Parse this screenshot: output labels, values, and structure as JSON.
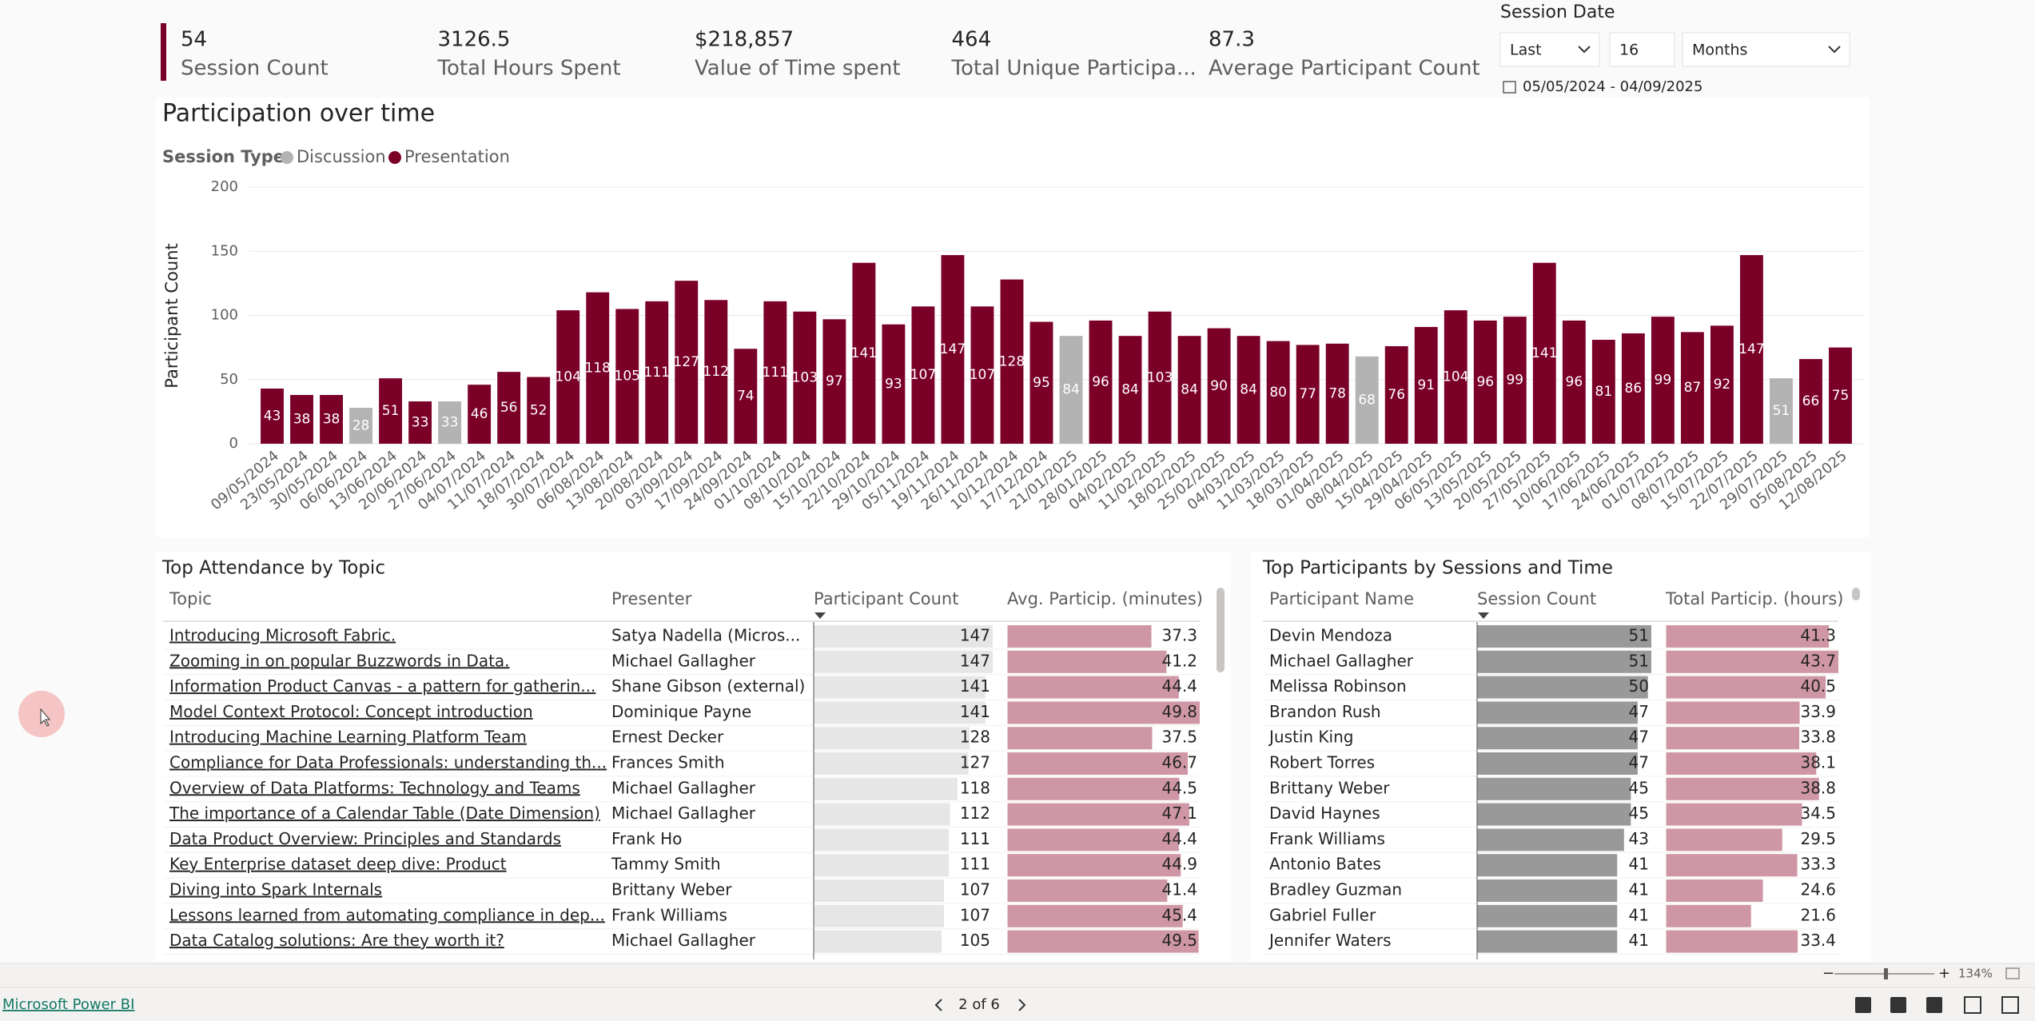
{
  "kpis": [
    {
      "value": "54",
      "label": "Session Count"
    },
    {
      "value": "3126.5",
      "label": "Total Hours Spent"
    },
    {
      "value": "$218,857",
      "label": "Value of Time spent"
    },
    {
      "value": "464",
      "label": "Total Unique Participa..."
    },
    {
      "value": "87.3",
      "label": "Average Participant Count"
    }
  ],
  "slicer": {
    "title": "Session Date",
    "mode": "Last",
    "count": "16",
    "unit": "Months",
    "range": "05/05/2024 - 04/09/2025"
  },
  "chart_data": {
    "type": "bar",
    "title": "Participation over time",
    "legend_title": "Session Type",
    "y_label": "Participant Count",
    "categories": [
      "09/05/2024",
      "23/05/2024",
      "30/05/2024",
      "06/06/2024",
      "13/06/2024",
      "20/06/2024",
      "27/06/2024",
      "04/07/2024",
      "11/07/2024",
      "18/07/2024",
      "30/07/2024",
      "06/08/2024",
      "13/08/2024",
      "20/08/2024",
      "03/09/2024",
      "17/09/2024",
      "24/09/2024",
      "01/10/2024",
      "08/10/2024",
      "15/10/2024",
      "22/10/2024",
      "29/10/2024",
      "05/11/2024",
      "19/11/2024",
      "26/11/2024",
      "10/12/2024",
      "17/12/2024",
      "21/01/2025",
      "28/01/2025",
      "04/02/2025",
      "11/02/2025",
      "18/02/2025",
      "25/02/2025",
      "04/03/2025",
      "11/03/2025",
      "18/03/2025",
      "01/04/2025",
      "08/04/2025",
      "15/04/2025",
      "29/04/2025",
      "06/05/2025",
      "13/05/2025",
      "20/05/2025",
      "27/05/2025",
      "10/06/2025",
      "17/06/2025",
      "24/06/2025",
      "01/07/2025",
      "08/07/2025",
      "15/07/2025",
      "22/07/2025",
      "29/07/2025",
      "05/08/2025",
      "12/08/2025"
    ],
    "series": [
      {
        "name": "Discussion",
        "color": "#b3b3b3",
        "values": [
          null,
          null,
          null,
          28,
          null,
          null,
          33,
          null,
          null,
          null,
          null,
          null,
          null,
          null,
          null,
          null,
          null,
          null,
          null,
          null,
          null,
          null,
          null,
          null,
          null,
          null,
          null,
          84,
          null,
          null,
          null,
          null,
          null,
          null,
          null,
          null,
          null,
          68,
          null,
          null,
          null,
          null,
          null,
          null,
          null,
          null,
          null,
          null,
          null,
          null,
          null,
          51,
          null,
          null
        ]
      },
      {
        "name": "Presentation",
        "color": "#7b0028",
        "values": [
          43,
          38,
          38,
          null,
          51,
          33,
          null,
          46,
          56,
          52,
          104,
          118,
          105,
          111,
          127,
          112,
          74,
          111,
          103,
          97,
          141,
          93,
          107,
          147,
          107,
          128,
          95,
          null,
          96,
          84,
          103,
          84,
          90,
          84,
          80,
          77,
          78,
          null,
          76,
          91,
          104,
          96,
          99,
          141,
          96,
          81,
          86,
          99,
          87,
          92,
          147,
          null,
          66,
          75
        ]
      }
    ],
    "ylim": [
      0,
      200
    ],
    "yticks": [
      0,
      50,
      100,
      150,
      200
    ],
    "grid": true
  },
  "top_topics": {
    "title": "Top Attendance by Topic",
    "columns": [
      "Topic",
      "Presenter",
      "Participant Count",
      "Avg. Particip. (minutes)"
    ],
    "rows": [
      [
        "Introducing Microsoft Fabric.",
        "Satya Nadella (Micros...",
        147,
        37.3
      ],
      [
        "Zooming in on popular Buzzwords in Data.",
        "Michael Gallagher",
        147,
        41.2
      ],
      [
        "Information Product Canvas - a pattern for gatherin...",
        "Shane Gibson (external)",
        141,
        44.4
      ],
      [
        "Model Context Protocol: Concept introduction",
        "Dominique Payne",
        141,
        49.8
      ],
      [
        "Introducing Machine Learning Platform Team",
        "Ernest Decker",
        128,
        37.5
      ],
      [
        "Compliance for Data Professionals: understanding th...",
        "Frances Smith",
        127,
        46.7
      ],
      [
        "Overview of Data Platforms: Technology and Teams",
        "Michael Gallagher",
        118,
        44.5
      ],
      [
        "The importance of a Calendar Table (Date Dimension)",
        "Michael Gallagher",
        112,
        47.1
      ],
      [
        "Data Product Overview: Principles and Standards",
        "Frank Ho",
        111,
        44.4
      ],
      [
        "Key Enterprise dataset deep dive: Product",
        "Tammy Smith",
        111,
        44.9
      ],
      [
        "Diving into Spark Internals",
        "Brittany Weber",
        107,
        41.4
      ],
      [
        "Lessons learned from automating compliance in dep...",
        "Frank Williams",
        107,
        45.4
      ],
      [
        "Data Catalog solutions: Are they worth it?",
        "Michael Gallagher",
        105,
        49.5
      ]
    ]
  },
  "top_participants": {
    "title": "Top Participants by Sessions and Time",
    "columns": [
      "Participant Name",
      "Session Count",
      "Total Particip. (hours)"
    ],
    "rows": [
      [
        "Devin Mendoza",
        51,
        41.3
      ],
      [
        "Michael Gallagher",
        51,
        43.7
      ],
      [
        "Melissa Robinson",
        50,
        40.5
      ],
      [
        "Brandon Rush",
        47,
        33.9
      ],
      [
        "Justin King",
        47,
        33.8
      ],
      [
        "Robert Torres",
        47,
        38.1
      ],
      [
        "Brittany Weber",
        45,
        38.8
      ],
      [
        "David Haynes",
        45,
        34.5
      ],
      [
        "Frank Williams",
        43,
        29.5
      ],
      [
        "Antonio Bates",
        41,
        33.3
      ],
      [
        "Bradley Guzman",
        41,
        24.6
      ],
      [
        "Gabriel Fuller",
        41,
        21.6
      ],
      [
        "Jennifer Waters",
        41,
        33.4
      ]
    ]
  },
  "footer": {
    "brand": "Microsoft Power BI",
    "page": "2 of 6",
    "zoom": "134%"
  }
}
